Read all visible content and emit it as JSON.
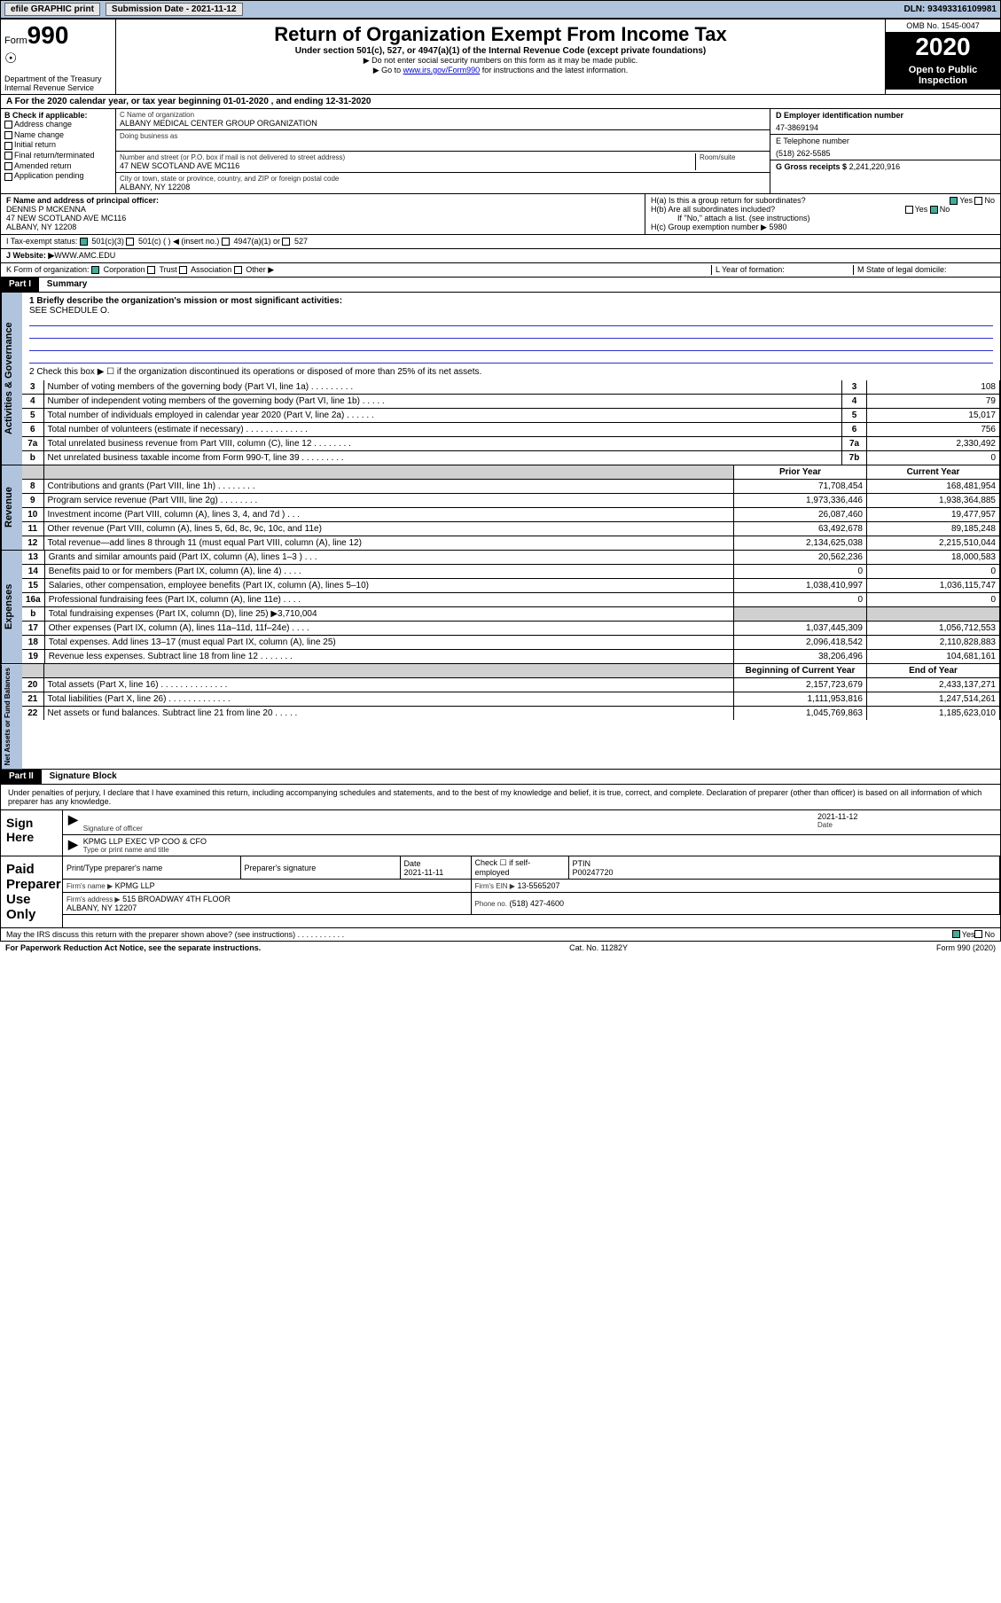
{
  "topbar": {
    "efile": "efile GRAPHIC print",
    "subdate_label": "Submission Date - 2021-11-12",
    "dln": "DLN: 93493316109981"
  },
  "header": {
    "form_label": "Form",
    "form_number": "990",
    "dept": "Department of the Treasury\nInternal Revenue Service",
    "title": "Return of Organization Exempt From Income Tax",
    "subtitle": "Under section 501(c), 527, or 4947(a)(1) of the Internal Revenue Code (except private foundations)",
    "note1": "▶ Do not enter social security numbers on this form as it may be made public.",
    "note2_pre": "▶ Go to ",
    "note2_link": "www.irs.gov/Form990",
    "note2_post": " for instructions and the latest information.",
    "omb": "OMB No. 1545-0047",
    "year": "2020",
    "public": "Open to Public Inspection"
  },
  "row_a": "A For the 2020 calendar year, or tax year beginning 01-01-2020    , and ending 12-31-2020",
  "section_b": {
    "label": "B Check if applicable:",
    "opts": [
      "Address change",
      "Name change",
      "Initial return",
      "Final return/terminated",
      "Amended return",
      "Application pending"
    ]
  },
  "section_c": {
    "name_label": "C Name of organization",
    "name": "ALBANY MEDICAL CENTER GROUP ORGANIZATION",
    "dba_label": "Doing business as",
    "addr_label": "Number and street (or P.O. box if mail is not delivered to street address)",
    "room_label": "Room/suite",
    "addr": "47 NEW SCOTLAND AVE MC116",
    "city_label": "City or town, state or province, country, and ZIP or foreign postal code",
    "city": "ALBANY, NY  12208"
  },
  "section_d": {
    "ein_label": "D Employer identification number",
    "ein": "47-3869194",
    "tel_label": "E Telephone number",
    "tel": "(518) 262-5585",
    "gross_label": "G Gross receipts $",
    "gross": "2,241,220,916"
  },
  "section_f": {
    "label": "F  Name and address of principal officer:",
    "name": "DENNIS P MCKENNA",
    "addr": "47 NEW SCOTLAND AVE MC116\nALBANY, NY  12208"
  },
  "section_h": {
    "ha": "H(a)  Is this a group return for subordinates?",
    "hb": "H(b)  Are all subordinates included?",
    "hb_note": "If \"No,\" attach a list. (see instructions)",
    "hc": "H(c)  Group exemption number ▶",
    "hc_val": "5980"
  },
  "tax_exempt": {
    "label": "I    Tax-exempt status:",
    "opt1": "501(c)(3)",
    "opt2": "501(c) (   ) ◀ (insert no.)",
    "opt3": "4947(a)(1) or",
    "opt4": "527"
  },
  "website": {
    "label": "J    Website: ▶",
    "val": "WWW.AMC.EDU"
  },
  "row_k": {
    "label": "K Form of organization:",
    "opts": [
      "Corporation",
      "Trust",
      "Association",
      "Other ▶"
    ],
    "l": "L Year of formation:",
    "m": "M State of legal domicile:"
  },
  "part1": {
    "hdr": "Part I",
    "title": "Summary",
    "q1": "1   Briefly describe the organization's mission or most significant activities:",
    "q1_val": "SEE SCHEDULE O.",
    "q2": "2   Check this box ▶ ☐  if the organization discontinued its operations or disposed of more than 25% of its net assets."
  },
  "gov_rows": [
    {
      "n": "3",
      "desc": "Number of voting members of the governing body (Part VI, line 1a)   .    .    .    .    .    .    .    .    .",
      "box": "3",
      "val": "108"
    },
    {
      "n": "4",
      "desc": "Number of independent voting members of the governing body (Part VI, line 1b)   .    .    .    .    .",
      "box": "4",
      "val": "79"
    },
    {
      "n": "5",
      "desc": "Total number of individuals employed in calendar year 2020 (Part V, line 2a)   .    .    .    .    .    .",
      "box": "5",
      "val": "15,017"
    },
    {
      "n": "6",
      "desc": "Total number of volunteers (estimate if necessary)   .    .    .    .    .    .    .    .    .    .    .    .    .",
      "box": "6",
      "val": "756"
    },
    {
      "n": "7a",
      "desc": "Total unrelated business revenue from Part VIII, column (C), line 12   .    .    .    .    .    .    .    .",
      "box": "7a",
      "val": "2,330,492"
    },
    {
      "n": "b",
      "desc": "Net unrelated business taxable income from Form 990-T, line 39   .    .    .    .    .    .    .    .    .",
      "box": "7b",
      "val": "0"
    }
  ],
  "col_hdrs": {
    "prior": "Prior Year",
    "current": "Current Year"
  },
  "rev_rows": [
    {
      "n": "8",
      "desc": "Contributions and grants (Part VIII, line 1h)   .    .    .    .    .    .    .    .",
      "p": "71,708,454",
      "c": "168,481,954"
    },
    {
      "n": "9",
      "desc": "Program service revenue (Part VIII, line 2g)   .    .    .    .    .    .    .    .",
      "p": "1,973,336,446",
      "c": "1,938,364,885"
    },
    {
      "n": "10",
      "desc": "Investment income (Part VIII, column (A), lines 3, 4, and 7d )   .    .    .",
      "p": "26,087,460",
      "c": "19,477,957"
    },
    {
      "n": "11",
      "desc": "Other revenue (Part VIII, column (A), lines 5, 6d, 8c, 9c, 10c, and 11e)",
      "p": "63,492,678",
      "c": "89,185,248"
    },
    {
      "n": "12",
      "desc": "Total revenue—add lines 8 through 11 (must equal Part VIII, column (A), line 12)",
      "p": "2,134,625,038",
      "c": "2,215,510,044"
    }
  ],
  "exp_rows": [
    {
      "n": "13",
      "desc": "Grants and similar amounts paid (Part IX, column (A), lines 1–3 )   .    .    .",
      "p": "20,562,236",
      "c": "18,000,583"
    },
    {
      "n": "14",
      "desc": "Benefits paid to or for members (Part IX, column (A), line 4)   .    .    .    .",
      "p": "0",
      "c": "0"
    },
    {
      "n": "15",
      "desc": "Salaries, other compensation, employee benefits (Part IX, column (A), lines 5–10)",
      "p": "1,038,410,997",
      "c": "1,036,115,747"
    },
    {
      "n": "16a",
      "desc": "Professional fundraising fees (Part IX, column (A), line 11e)   .    .    .    .",
      "p": "0",
      "c": "0"
    },
    {
      "n": "b",
      "desc": "Total fundraising expenses (Part IX, column (D), line 25) ▶3,710,004",
      "p": "shade",
      "c": "shade"
    },
    {
      "n": "17",
      "desc": "Other expenses (Part IX, column (A), lines 11a–11d, 11f–24e)   .    .    .    .",
      "p": "1,037,445,309",
      "c": "1,056,712,553"
    },
    {
      "n": "18",
      "desc": "Total expenses. Add lines 13–17 (must equal Part IX, column (A), line 25)",
      "p": "2,096,418,542",
      "c": "2,110,828,883"
    },
    {
      "n": "19",
      "desc": "Revenue less expenses. Subtract line 18 from line 12  .    .    .    .    .    .    .",
      "p": "38,206,496",
      "c": "104,681,161"
    }
  ],
  "na_hdrs": {
    "begin": "Beginning of Current Year",
    "end": "End of Year"
  },
  "na_rows": [
    {
      "n": "20",
      "desc": "Total assets (Part X, line 16)  .    .    .    .    .    .    .    .    .    .    .    .    .    .",
      "p": "2,157,723,679",
      "c": "2,433,137,271"
    },
    {
      "n": "21",
      "desc": "Total liabilities (Part X, line 26)  .    .    .    .    .    .    .    .    .    .    .    .    .",
      "p": "1,111,953,816",
      "c": "1,247,514,261"
    },
    {
      "n": "22",
      "desc": "Net assets or fund balances. Subtract line 21 from line 20  .    .    .    .    .",
      "p": "1,045,769,863",
      "c": "1,185,623,010"
    }
  ],
  "vtabs": {
    "gov": "Activities & Governance",
    "rev": "Revenue",
    "exp": "Expenses",
    "na": "Net Assets or Fund Balances"
  },
  "part2": {
    "hdr": "Part II",
    "title": "Signature Block",
    "perjury": "Under penalties of perjury, I declare that I have examined this return, including accompanying schedules and statements, and to the best of my knowledge and belief, it is true, correct, and complete. Declaration of preparer (other than officer) is based on all information of which preparer has any knowledge."
  },
  "sign": {
    "label": "Sign Here",
    "sig_label": "Signature of officer",
    "date_label": "Date",
    "date": "2021-11-12",
    "name": "KPMG LLP  EXEC VP COO & CFO",
    "name_label": "Type or print name and title"
  },
  "paid": {
    "label": "Paid Preparer Use Only",
    "cols": [
      "Print/Type preparer's name",
      "Preparer's signature",
      "Date",
      "",
      "PTIN"
    ],
    "date": "2021-11-11",
    "check_label": "Check ☐  if self-employed",
    "ptin": "P00247720",
    "firm_name_label": "Firm's name    ▶",
    "firm_name": "KPMG LLP",
    "firm_ein_label": "Firm's EIN ▶",
    "firm_ein": "13-5565207",
    "firm_addr_label": "Firm's address ▶",
    "firm_addr": "515 BROADWAY 4TH FLOOR\nALBANY, NY  12207",
    "phone_label": "Phone no.",
    "phone": "(518) 427-4600"
  },
  "discuss": "May the IRS discuss this return with the preparer shown above? (see instructions)   .    .    .    .    .    .    .    .    .    .    .",
  "footer": {
    "left": "For Paperwork Reduction Act Notice, see the separate instructions.",
    "mid": "Cat. No. 11282Y",
    "right": "Form 990 (2020)"
  },
  "yes": "Yes",
  "no": "No"
}
